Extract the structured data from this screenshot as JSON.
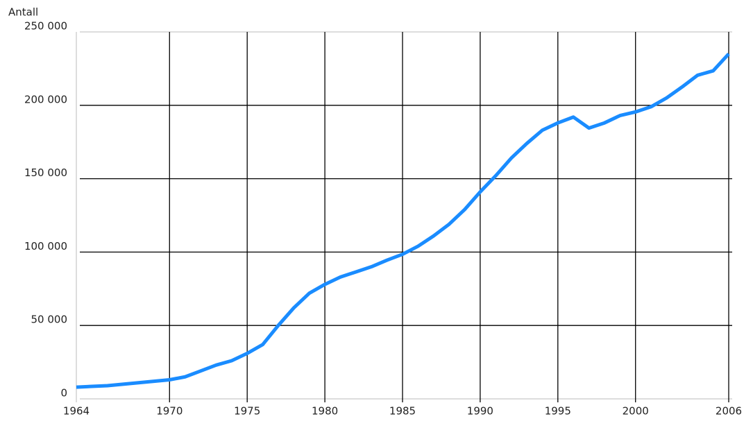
{
  "chart_data": {
    "type": "line",
    "y_label": "Antall",
    "x": [
      1964,
      1965,
      1966,
      1967,
      1968,
      1969,
      1970,
      1971,
      1972,
      1973,
      1974,
      1975,
      1976,
      1977,
      1978,
      1979,
      1980,
      1981,
      1982,
      1983,
      1984,
      1985,
      1986,
      1987,
      1988,
      1989,
      1990,
      1991,
      1992,
      1993,
      1994,
      1995,
      1996,
      1997,
      1998,
      1999,
      2000,
      2001,
      2002,
      2003,
      2004,
      2005,
      2006
    ],
    "series": [
      {
        "color": "#1a8cff",
        "values": [
          8000,
          8500,
          9000,
          10000,
          11000,
          12000,
          13000,
          15000,
          19000,
          23000,
          26000,
          31000,
          37000,
          50000,
          62000,
          72000,
          78000,
          83000,
          86500,
          90000,
          94500,
          98500,
          104000,
          111000,
          119000,
          129000,
          141000,
          152000,
          164000,
          174000,
          183000,
          188000,
          192000,
          184500,
          188000,
          193000,
          195500,
          199000,
          205000,
          212500,
          220500,
          223500,
          235000
        ]
      }
    ],
    "xlim": [
      1964,
      2006
    ],
    "xticks": [
      1964,
      1970,
      1975,
      1980,
      1985,
      1990,
      1995,
      2000,
      2006
    ],
    "ylim": [
      0,
      250000
    ],
    "yticks": [
      0,
      {
        "value": 50000,
        "label": "50 000"
      },
      {
        "value": 100000,
        "label": "100 000"
      },
      {
        "value": 150000,
        "label": "150 000"
      },
      {
        "value": 200000,
        "label": "200 000"
      },
      {
        "value": 250000,
        "label": "250 000"
      }
    ],
    "grid": true
  }
}
